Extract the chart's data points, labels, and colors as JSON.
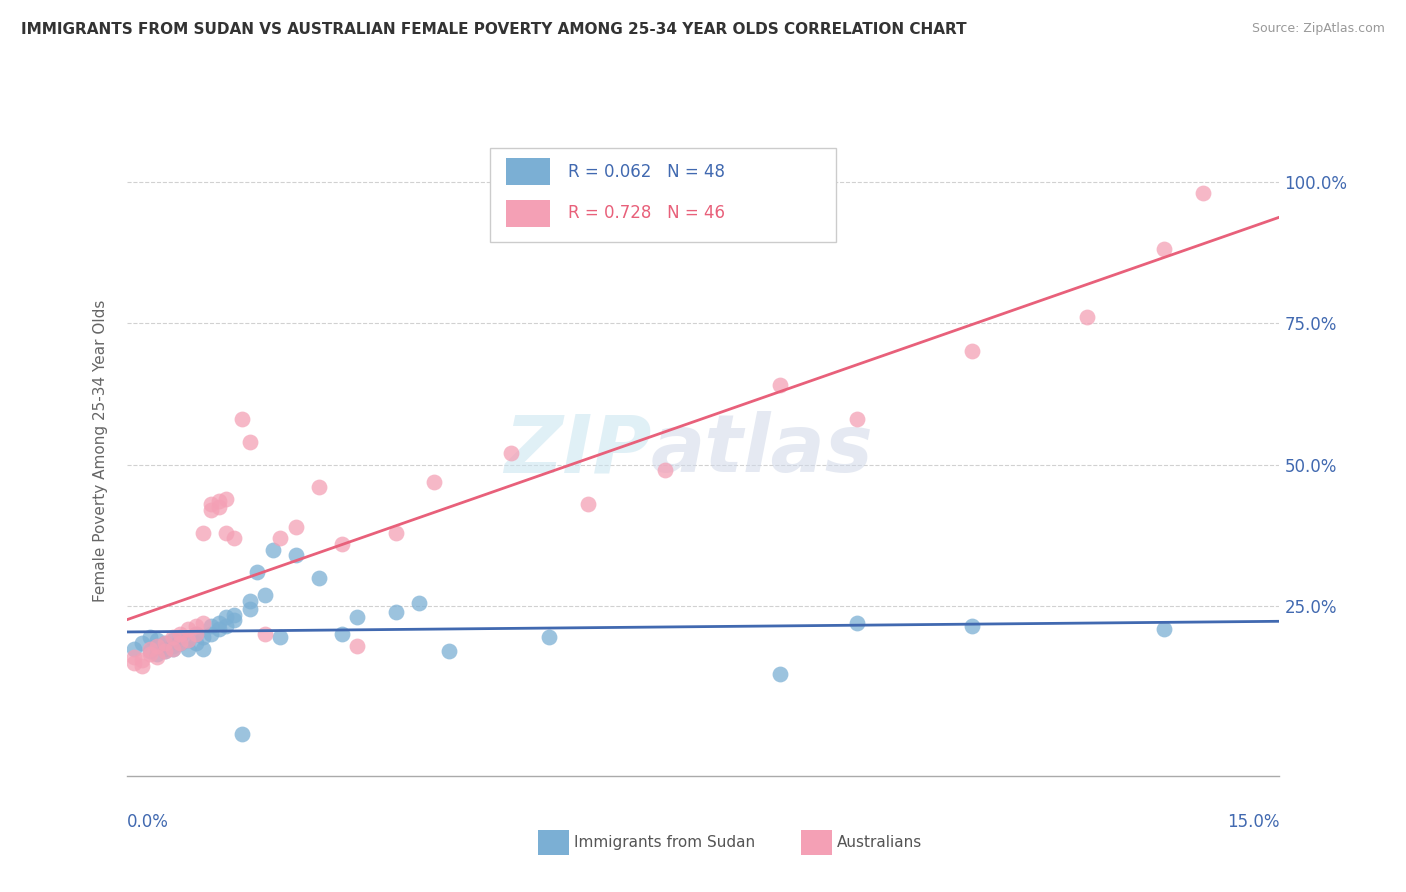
{
  "title": "IMMIGRANTS FROM SUDAN VS AUSTRALIAN FEMALE POVERTY AMONG 25-34 YEAR OLDS CORRELATION CHART",
  "source": "Source: ZipAtlas.com",
  "ylabel": "Female Poverty Among 25-34 Year Olds",
  "yticks_right": [
    "25.0%",
    "50.0%",
    "75.0%",
    "100.0%"
  ],
  "yticks_right_vals": [
    0.25,
    0.5,
    0.75,
    1.0
  ],
  "xlim": [
    0.0,
    0.15
  ],
  "ylim": [
    -0.05,
    1.1
  ],
  "legend_label1": "Immigrants from Sudan",
  "legend_label2": "Australians",
  "R1": "0.062",
  "N1": "48",
  "R2": "0.728",
  "N2": "46",
  "color_blue": "#7bafd4",
  "color_pink": "#f4a0b5",
  "color_blue_line": "#4169b0",
  "color_pink_line": "#e8607a",
  "color_blue_text": "#4169b0",
  "color_pink_text": "#e8607a",
  "scatter_blue_x": [
    0.001,
    0.002,
    0.003,
    0.003,
    0.004,
    0.004,
    0.004,
    0.005,
    0.005,
    0.005,
    0.006,
    0.006,
    0.006,
    0.007,
    0.007,
    0.008,
    0.008,
    0.009,
    0.009,
    0.01,
    0.01,
    0.011,
    0.011,
    0.012,
    0.012,
    0.013,
    0.013,
    0.014,
    0.014,
    0.015,
    0.016,
    0.016,
    0.017,
    0.018,
    0.019,
    0.02,
    0.022,
    0.025,
    0.028,
    0.03,
    0.035,
    0.038,
    0.042,
    0.055,
    0.085,
    0.095,
    0.11,
    0.135
  ],
  "scatter_blue_y": [
    0.175,
    0.185,
    0.17,
    0.195,
    0.165,
    0.18,
    0.19,
    0.175,
    0.185,
    0.17,
    0.18,
    0.19,
    0.175,
    0.185,
    0.195,
    0.175,
    0.19,
    0.2,
    0.185,
    0.175,
    0.195,
    0.215,
    0.2,
    0.22,
    0.21,
    0.23,
    0.215,
    0.225,
    0.235,
    0.025,
    0.245,
    0.26,
    0.31,
    0.27,
    0.35,
    0.195,
    0.34,
    0.3,
    0.2,
    0.23,
    0.24,
    0.255,
    0.17,
    0.195,
    0.13,
    0.22,
    0.215,
    0.21
  ],
  "scatter_pink_x": [
    0.001,
    0.001,
    0.002,
    0.002,
    0.003,
    0.003,
    0.004,
    0.004,
    0.005,
    0.005,
    0.006,
    0.006,
    0.007,
    0.007,
    0.008,
    0.008,
    0.009,
    0.009,
    0.01,
    0.01,
    0.011,
    0.011,
    0.012,
    0.012,
    0.013,
    0.013,
    0.014,
    0.015,
    0.016,
    0.018,
    0.02,
    0.022,
    0.025,
    0.028,
    0.03,
    0.035,
    0.04,
    0.05,
    0.06,
    0.07,
    0.085,
    0.095,
    0.11,
    0.125,
    0.135,
    0.14
  ],
  "scatter_pink_y": [
    0.15,
    0.16,
    0.145,
    0.155,
    0.165,
    0.175,
    0.16,
    0.18,
    0.17,
    0.185,
    0.175,
    0.195,
    0.185,
    0.2,
    0.19,
    0.21,
    0.2,
    0.215,
    0.38,
    0.22,
    0.42,
    0.43,
    0.425,
    0.435,
    0.44,
    0.38,
    0.37,
    0.58,
    0.54,
    0.2,
    0.37,
    0.39,
    0.46,
    0.36,
    0.18,
    0.38,
    0.47,
    0.52,
    0.43,
    0.49,
    0.64,
    0.58,
    0.7,
    0.76,
    0.88,
    0.98
  ],
  "watermark_zip": "ZIP",
  "watermark_atlas": "atlas",
  "background_color": "#ffffff",
  "grid_color": "#cccccc"
}
